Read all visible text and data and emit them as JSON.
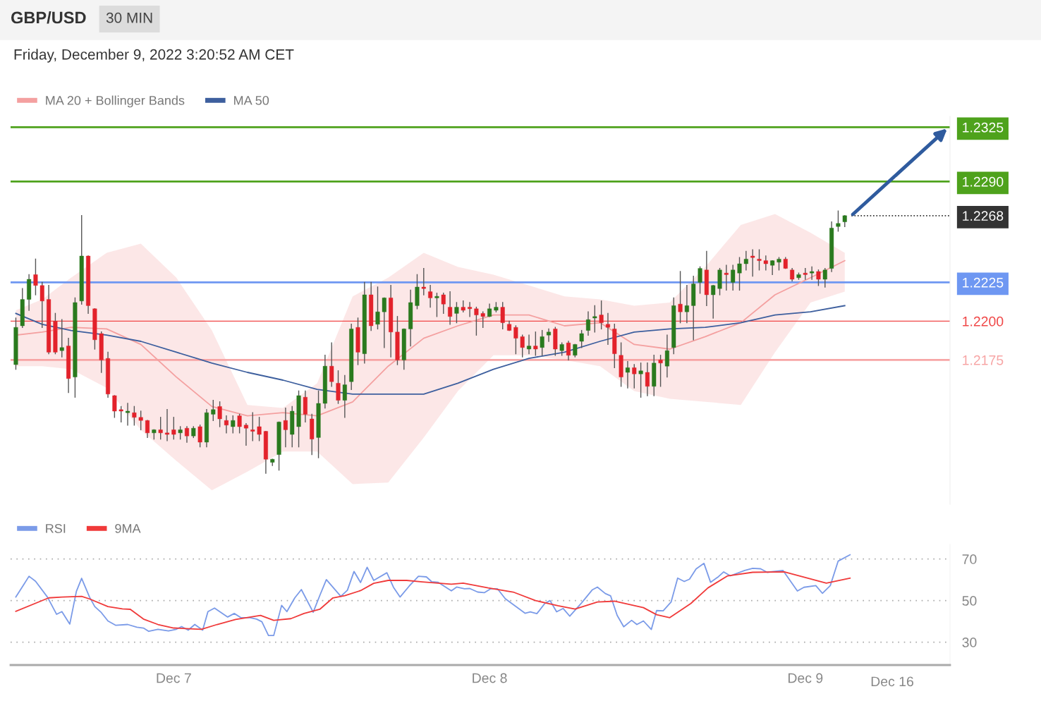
{
  "chart_data": [
    {
      "type": "candlestick",
      "title": "GBP/USD",
      "subtitle": "Friday, December 9, 2022 3:20:52 AM CET",
      "annotations": [
        "30 MIN"
      ],
      "x": [
        "2022-12-06T12:00",
        "2022-12-06T12:30",
        "2022-12-06T13:00",
        "2022-12-06T13:30",
        "2022-12-06T14:00",
        "2022-12-06T14:30",
        "2022-12-06T15:00",
        "2022-12-06T15:30",
        "2022-12-06T16:00",
        "2022-12-06T16:30",
        "2022-12-06T17:00",
        "2022-12-06T17:30",
        "2022-12-06T18:00",
        "2022-12-06T18:30",
        "2022-12-06T19:00",
        "2022-12-06T19:30",
        "2022-12-06T20:00",
        "2022-12-06T20:30",
        "2022-12-06T21:00",
        "2022-12-06T21:30",
        "2022-12-06T22:00",
        "2022-12-06T22:30",
        "2022-12-06T23:00",
        "2022-12-06T23:30",
        "2022-12-07T00:00",
        "2022-12-07T00:30",
        "2022-12-07T01:00",
        "2022-12-07T01:30",
        "2022-12-07T02:00",
        "2022-12-07T02:30",
        "2022-12-07T03:00",
        "2022-12-07T03:30",
        "2022-12-07T04:00",
        "2022-12-07T04:30",
        "2022-12-07T05:00",
        "2022-12-07T05:30",
        "2022-12-07T06:00",
        "2022-12-07T06:30",
        "2022-12-07T07:00",
        "2022-12-07T07:30",
        "2022-12-07T08:00",
        "2022-12-07T08:30",
        "2022-12-07T09:00",
        "2022-12-07T09:30",
        "2022-12-07T10:00",
        "2022-12-07T10:30",
        "2022-12-07T11:00",
        "2022-12-07T11:30",
        "2022-12-07T12:00",
        "2022-12-07T12:30",
        "2022-12-07T13:00",
        "2022-12-07T13:30",
        "2022-12-07T14:00",
        "2022-12-07T14:30",
        "2022-12-07T15:00",
        "2022-12-07T15:30",
        "2022-12-07T16:00",
        "2022-12-07T16:30",
        "2022-12-07T17:00",
        "2022-12-07T17:30",
        "2022-12-07T18:00",
        "2022-12-07T18:30",
        "2022-12-07T19:00",
        "2022-12-07T19:30",
        "2022-12-07T20:00",
        "2022-12-07T20:30",
        "2022-12-07T21:00",
        "2022-12-07T21:30",
        "2022-12-07T22:00",
        "2022-12-07T22:30",
        "2022-12-07T23:00",
        "2022-12-07T23:30",
        "2022-12-08T00:00",
        "2022-12-08T00:30",
        "2022-12-08T01:00",
        "2022-12-08T01:30",
        "2022-12-08T02:00",
        "2022-12-08T02:30",
        "2022-12-08T03:00",
        "2022-12-08T03:30",
        "2022-12-08T04:00",
        "2022-12-08T04:30",
        "2022-12-08T05:00",
        "2022-12-08T05:30",
        "2022-12-08T06:00",
        "2022-12-08T06:30",
        "2022-12-08T07:00",
        "2022-12-08T07:30",
        "2022-12-08T08:00",
        "2022-12-08T08:30",
        "2022-12-08T09:00",
        "2022-12-08T09:30",
        "2022-12-08T10:00",
        "2022-12-08T10:30",
        "2022-12-08T11:00",
        "2022-12-08T11:30",
        "2022-12-08T12:00",
        "2022-12-08T12:30",
        "2022-12-08T13:00",
        "2022-12-08T13:30",
        "2022-12-08T14:00",
        "2022-12-08T14:30",
        "2022-12-08T15:00",
        "2022-12-08T15:30",
        "2022-12-08T16:00",
        "2022-12-08T16:30",
        "2022-12-08T17:00",
        "2022-12-08T17:30",
        "2022-12-08T18:00",
        "2022-12-08T18:30",
        "2022-12-08T19:00",
        "2022-12-08T19:30",
        "2022-12-08T20:00",
        "2022-12-08T20:30",
        "2022-12-08T21:00",
        "2022-12-08T21:30",
        "2022-12-08T22:00",
        "2022-12-08T22:30",
        "2022-12-08T23:00",
        "2022-12-08T23:30",
        "2022-12-09T00:00",
        "2022-12-09T00:30",
        "2022-12-09T01:00",
        "2022-12-09T01:30",
        "2022-12-09T02:00",
        "2022-12-09T02:30",
        "2022-12-09T03:00"
      ],
      "ohlc": [
        [
          1.2172,
          1.2202,
          1.2169,
          1.2196
        ],
        [
          1.2197,
          1.2221,
          1.2196,
          1.2214
        ],
        [
          1.2214,
          1.223,
          1.2207,
          1.2227
        ],
        [
          1.223,
          1.224,
          1.2217,
          1.2223
        ],
        [
          1.2223,
          1.2225,
          1.2196,
          1.2213
        ],
        [
          1.2214,
          1.2223,
          1.2179,
          1.218
        ],
        [
          1.22,
          1.2205,
          1.2179,
          1.218
        ],
        [
          1.2181,
          1.2201,
          1.2177,
          1.2183
        ],
        [
          1.2184,
          1.2189,
          1.2154,
          1.2163
        ],
        [
          1.2164,
          1.2215,
          1.2151,
          1.2212
        ],
        [
          1.2213,
          1.2268,
          1.2211,
          1.2242
        ],
        [
          1.2242,
          1.2242,
          1.2205,
          1.221
        ],
        [
          1.2208,
          1.2208,
          1.2182,
          1.2188
        ],
        [
          1.2192,
          1.2193,
          1.2167,
          1.2175
        ],
        [
          1.2176,
          1.218,
          1.2151,
          1.2153
        ],
        [
          1.2152,
          1.2152,
          1.2138,
          1.2142
        ],
        [
          1.2143,
          1.2145,
          1.2135,
          1.2142
        ],
        [
          1.2141,
          1.2147,
          1.2133,
          1.2142
        ],
        [
          1.2141,
          1.2145,
          1.2133,
          1.2138
        ],
        [
          1.2138,
          1.2142,
          1.213,
          1.2136
        ],
        [
          1.2136,
          1.2136,
          1.2125,
          1.2128
        ],
        [
          1.2128,
          1.213,
          1.2124,
          1.213
        ],
        [
          1.213,
          1.2138,
          1.2124,
          1.2128
        ],
        [
          1.2128,
          1.2143,
          1.2123,
          1.2127
        ],
        [
          1.213,
          1.2138,
          1.2124,
          1.2127
        ],
        [
          1.2128,
          1.2132,
          1.2124,
          1.213
        ],
        [
          1.2131,
          1.2132,
          1.2122,
          1.2126
        ],
        [
          1.2126,
          1.2132,
          1.2125,
          1.2131
        ],
        [
          1.2132,
          1.2133,
          1.2119,
          1.2122
        ],
        [
          1.2122,
          1.2143,
          1.2119,
          1.2141
        ],
        [
          1.214,
          1.2149,
          1.2136,
          1.2143
        ],
        [
          1.2145,
          1.2148,
          1.2132,
          1.2137
        ],
        [
          1.2136,
          1.2139,
          1.2128,
          1.2133
        ],
        [
          1.2132,
          1.2139,
          1.2128,
          1.2136
        ],
        [
          1.2139,
          1.214,
          1.2128,
          1.2132
        ],
        [
          1.2133,
          1.2134,
          1.212,
          1.2131
        ],
        [
          1.213,
          1.2141,
          1.2123,
          1.2129
        ],
        [
          1.2132,
          1.2138,
          1.2123,
          1.2127
        ],
        [
          1.2129,
          1.2129,
          1.2102,
          1.2111
        ],
        [
          1.2109,
          1.2111,
          1.2107,
          1.2111
        ],
        [
          1.2114,
          1.2135,
          1.2104,
          1.2135
        ],
        [
          1.2136,
          1.2144,
          1.2119,
          1.213
        ],
        [
          1.2127,
          1.2145,
          1.2119,
          1.2142
        ],
        [
          1.2132,
          1.2155,
          1.2119,
          1.2152
        ],
        [
          1.2151,
          1.2155,
          1.2135,
          1.214
        ],
        [
          1.2137,
          1.214,
          1.2114,
          1.2124
        ],
        [
          1.2125,
          1.2155,
          1.2112,
          1.2147
        ],
        [
          1.2147,
          1.2178,
          1.2144,
          1.2171
        ],
        [
          1.2171,
          1.2186,
          1.2158,
          1.2161
        ],
        [
          1.216,
          1.2168,
          1.2147,
          1.2149
        ],
        [
          1.2149,
          1.2165,
          1.2138,
          1.2159
        ],
        [
          1.2161,
          1.2198,
          1.2156,
          1.2195
        ],
        [
          1.2196,
          1.2202,
          1.2172,
          1.218
        ],
        [
          1.2179,
          1.2225,
          1.2173,
          1.2217
        ],
        [
          1.2217,
          1.2225,
          1.2194,
          1.2197
        ],
        [
          1.2198,
          1.2222,
          1.2195,
          1.2206
        ],
        [
          1.2206,
          1.2215,
          1.2183,
          1.2215
        ],
        [
          1.2215,
          1.2223,
          1.2177,
          1.2193
        ],
        [
          1.2193,
          1.2203,
          1.2172,
          1.2175
        ],
        [
          1.2175,
          1.2195,
          1.2169,
          1.2195
        ],
        [
          1.2195,
          1.222,
          1.2184,
          1.2212
        ],
        [
          1.221,
          1.223,
          1.2208,
          1.2222
        ],
        [
          1.2222,
          1.2234,
          1.2217,
          1.2221
        ],
        [
          1.2219,
          1.2223,
          1.2209,
          1.2215
        ],
        [
          1.2215,
          1.2218,
          1.2203,
          1.2216
        ],
        [
          1.2217,
          1.2218,
          1.2205,
          1.2211
        ],
        [
          1.2209,
          1.2219,
          1.2198,
          1.2203
        ],
        [
          1.2205,
          1.2212,
          1.2199,
          1.2209
        ],
        [
          1.2209,
          1.2213,
          1.2206,
          1.2207
        ],
        [
          1.2209,
          1.2212,
          1.2203,
          1.2208
        ],
        [
          1.2208,
          1.2209,
          1.2191,
          1.2204
        ],
        [
          1.2205,
          1.2206,
          1.2196,
          1.2203
        ],
        [
          1.2203,
          1.2211,
          1.2203,
          1.2208
        ],
        [
          1.2207,
          1.2212,
          1.2206,
          1.2209
        ],
        [
          1.2209,
          1.2212,
          1.2195,
          1.2199
        ],
        [
          1.2198,
          1.22,
          1.2194,
          1.2194
        ],
        [
          1.2196,
          1.2197,
          1.2179,
          1.2189
        ],
        [
          1.219,
          1.2191,
          1.2177,
          1.2183
        ],
        [
          1.2182,
          1.2191,
          1.2179,
          1.2184
        ],
        [
          1.2184,
          1.2193,
          1.2178,
          1.2182
        ],
        [
          1.2183,
          1.2194,
          1.2178,
          1.219
        ],
        [
          1.2191,
          1.2195,
          1.2187,
          1.2193
        ],
        [
          1.2195,
          1.2196,
          1.2178,
          1.2182
        ],
        [
          1.2181,
          1.2186,
          1.2178,
          1.2185
        ],
        [
          1.2186,
          1.2187,
          1.2175,
          1.2178
        ],
        [
          1.2178,
          1.2185,
          1.2177,
          1.2185
        ],
        [
          1.2187,
          1.2194,
          1.2183,
          1.2192
        ],
        [
          1.2194,
          1.2206,
          1.2191,
          1.2201
        ],
        [
          1.2202,
          1.221,
          1.2193,
          1.2203
        ],
        [
          1.2204,
          1.2213,
          1.2195,
          1.2199
        ],
        [
          1.2198,
          1.2205,
          1.2185,
          1.2196
        ],
        [
          1.2195,
          1.2198,
          1.217,
          1.2179
        ],
        [
          1.2178,
          1.2186,
          1.2158,
          1.2164
        ],
        [
          1.2167,
          1.2174,
          1.2157,
          1.217
        ],
        [
          1.217,
          1.2172,
          1.2157,
          1.2166
        ],
        [
          1.2166,
          1.2173,
          1.2151,
          1.2168
        ],
        [
          1.2167,
          1.2173,
          1.2152,
          1.2158
        ],
        [
          1.2158,
          1.2178,
          1.2152,
          1.2173
        ],
        [
          1.2175,
          1.2178,
          1.2158,
          1.2173
        ],
        [
          1.2171,
          1.2191,
          1.2164,
          1.2181
        ],
        [
          1.2183,
          1.2215,
          1.2179,
          1.221
        ],
        [
          1.2211,
          1.2232,
          1.2199,
          1.2206
        ],
        [
          1.2206,
          1.2223,
          1.2199,
          1.221
        ],
        [
          1.221,
          1.2229,
          1.2188,
          1.2224
        ],
        [
          1.2225,
          1.2235,
          1.2218,
          1.2234
        ],
        [
          1.2233,
          1.2245,
          1.221,
          1.2217
        ],
        [
          1.2217,
          1.2223,
          1.2202,
          1.2223
        ],
        [
          1.2221,
          1.2234,
          1.2217,
          1.2233
        ],
        [
          1.2231,
          1.2236,
          1.222,
          1.223
        ],
        [
          1.2225,
          1.2236,
          1.222,
          1.2233
        ],
        [
          1.2231,
          1.2241,
          1.222,
          1.2237
        ],
        [
          1.2237,
          1.2245,
          1.2233,
          1.224
        ],
        [
          1.2242,
          1.2246,
          1.2229,
          1.2241
        ],
        [
          1.224,
          1.2246,
          1.2233,
          1.2239
        ],
        [
          1.2239,
          1.2242,
          1.2233,
          1.2237
        ],
        [
          1.2236,
          1.2239,
          1.223,
          1.2239
        ],
        [
          1.2238,
          1.2241,
          1.2233,
          1.224
        ],
        [
          1.224,
          1.2241,
          1.2234,
          1.2234
        ],
        [
          1.2233,
          1.2234,
          1.2226,
          1.2227
        ],
        [
          1.2228,
          1.2231,
          1.2227,
          1.223
        ],
        [
          1.2231,
          1.2234,
          1.2227,
          1.223
        ],
        [
          1.2231,
          1.2235,
          1.2227,
          1.2232
        ],
        [
          1.2232,
          1.2233,
          1.2223,
          1.2227
        ],
        [
          1.2227,
          1.2234,
          1.2222,
          1.2233
        ],
        [
          1.2234,
          1.2264,
          1.2232,
          1.226
        ],
        [
          1.2261,
          1.2271,
          1.2258,
          1.2263
        ],
        [
          1.2264,
          1.2268,
          1.2261,
          1.2268
        ]
      ],
      "series": [
        {
          "name": "MA 20 + Bollinger Bands",
          "type": "line",
          "color": "#f4a0a0",
          "x": [
            "2022-12-06T12:00",
            "2022-12-06T14:00",
            "2022-12-06T16:12",
            "2022-12-06T18:54",
            "2022-12-06T21:30",
            "2022-12-07T00:12",
            "2022-12-07T02:54",
            "2022-12-07T05:36",
            "2022-12-07T08:18",
            "2022-12-07T10:54",
            "2022-12-07T13:36",
            "2022-12-07T16:18",
            "2022-12-07T19:00",
            "2022-12-07T21:36",
            "2022-12-08T00:18",
            "2022-12-08T03:00",
            "2022-12-08T05:42",
            "2022-12-08T08:24",
            "2022-12-08T11:00",
            "2022-12-08T13:42",
            "2022-12-08T16:24",
            "2022-12-08T19:06",
            "2022-12-08T21:42",
            "2022-12-09T00:24",
            "2022-12-09T03:00"
          ],
          "values": [
            1.2191,
            1.2193,
            1.2196,
            1.2195,
            1.2185,
            1.2164,
            1.2145,
            1.2139,
            1.2141,
            1.2139,
            1.2148,
            1.2171,
            1.2189,
            1.2197,
            1.2204,
            1.2204,
            1.2197,
            1.2199,
            1.2185,
            1.2182,
            1.219,
            1.2199,
            1.2217,
            1.2228,
            1.2239
          ],
          "lower": [
            1.2171,
            1.2171,
            1.2169,
            1.2157,
            1.213,
            1.211,
            1.2091,
            1.2103,
            1.2116,
            1.2116,
            1.2095,
            1.2096,
            1.2125,
            1.2155,
            1.2178,
            1.2178,
            1.2175,
            1.2171,
            1.2155,
            1.215,
            1.2148,
            1.2146,
            1.218,
            1.2212,
            1.2219
          ],
          "upper": [
            1.2207,
            1.2214,
            1.2228,
            1.2244,
            1.225,
            1.2228,
            1.2194,
            1.2146,
            1.2144,
            1.216,
            1.2216,
            1.2228,
            1.2244,
            1.2235,
            1.223,
            1.2223,
            1.2216,
            1.2214,
            1.221,
            1.2212,
            1.2235,
            1.2262,
            1.2269,
            1.2257,
            1.2244
          ]
        },
        {
          "name": "MA 50",
          "type": "line",
          "color": "#3d5f9e",
          "x": [
            "2022-12-06T12:00",
            "2022-12-06T14:00",
            "2022-12-06T16:12",
            "2022-12-06T18:54",
            "2022-12-06T21:30",
            "2022-12-07T00:12",
            "2022-12-07T02:54",
            "2022-12-07T05:36",
            "2022-12-07T08:18",
            "2022-12-07T10:54",
            "2022-12-07T13:36",
            "2022-12-07T16:18",
            "2022-12-07T19:00",
            "2022-12-07T21:36",
            "2022-12-08T00:18",
            "2022-12-08T03:00",
            "2022-12-08T05:42",
            "2022-12-08T08:24",
            "2022-12-08T11:00",
            "2022-12-08T13:42",
            "2022-12-08T16:24",
            "2022-12-08T19:06",
            "2022-12-08T21:42",
            "2022-12-09T00:24",
            "2022-12-09T03:00"
          ],
          "values": [
            1.2205,
            1.2198,
            1.2194,
            1.2191,
            1.2187,
            1.218,
            1.2173,
            1.2167,
            1.2162,
            1.2156,
            1.2153,
            1.2153,
            1.2153,
            1.216,
            1.2169,
            1.2176,
            1.218,
            1.2187,
            1.2193,
            1.2195,
            1.2196,
            1.2199,
            1.2204,
            1.2206,
            1.221
          ]
        }
      ],
      "xlim": [
        "2022-12-06T11:36",
        "2022-12-09T11:00"
      ],
      "ylim": [
        1.2082,
        1.2332
      ],
      "yticks": [
        1.2175,
        {
          "value": 1.22,
          "label": "1.2200"
        },
        1.2225,
        1.2268,
        {
          "value": 1.229,
          "label": "1.2290"
        },
        1.2325
      ],
      "tick_labels": "y",
      "legend": "top left",
      "ref_lines": [
        {
          "axis": "y",
          "value": 1.2325,
          "color": "#4ea21c",
          "line_style": "solid"
        },
        {
          "axis": "y",
          "value": 1.229,
          "color": "#4ea21c",
          "line_style": "solid"
        },
        {
          "axis": "y",
          "value": 1.2268,
          "color": "#333333",
          "line_style": "dotted"
        },
        {
          "axis": "y",
          "value": 1.2225,
          "color": "#6e97f2",
          "line_style": "solid"
        },
        {
          "axis": "y",
          "value": 1.22,
          "color": "#f04848",
          "line_style": "solid"
        },
        {
          "axis": "y",
          "value": 1.2175,
          "color": "#f7a5a5",
          "line_style": "solid"
        }
      ]
    },
    {
      "type": "line",
      "legend": "top left",
      "grid": "y",
      "series": [
        {
          "name": "RSI",
          "color": "#7b9be8",
          "x": [
            "2022-12-06T12:00",
            "2022-12-06T12:36",
            "2022-12-06T13:00",
            "2022-12-06T13:30",
            "2022-12-06T14:24",
            "2022-12-06T15:06",
            "2022-12-06T15:30",
            "2022-12-06T16:06",
            "2022-12-06T16:36",
            "2022-12-06T17:00",
            "2022-12-06T17:36",
            "2022-12-06T18:00",
            "2022-12-06T18:30",
            "2022-12-06T19:00",
            "2022-12-06T19:36",
            "2022-12-06T20:30",
            "2022-12-06T21:12",
            "2022-12-06T21:42",
            "2022-12-06T22:06",
            "2022-12-06T22:48",
            "2022-12-06T23:36",
            "2022-12-07T00:12",
            "2022-12-07T00:36",
            "2022-12-07T01:06",
            "2022-12-07T01:36",
            "2022-12-07T02:12",
            "2022-12-07T02:36",
            "2022-12-07T03:06",
            "2022-12-07T04:06",
            "2022-12-07T04:36",
            "2022-12-07T05:06",
            "2022-12-07T05:48",
            "2022-12-07T06:18",
            "2022-12-07T06:42",
            "2022-12-07T07:12",
            "2022-12-07T07:36",
            "2022-12-07T08:12",
            "2022-12-07T08:36",
            "2022-12-07T09:12",
            "2022-12-07T09:42",
            "2022-12-07T10:36",
            "2022-12-07T11:06",
            "2022-12-07T11:36",
            "2022-12-07T12:42",
            "2022-12-07T13:12",
            "2022-12-07T13:42",
            "2022-12-07T14:12",
            "2022-12-07T14:42",
            "2022-12-07T15:12",
            "2022-12-07T16:12",
            "2022-12-07T16:42",
            "2022-12-07T17:12",
            "2022-12-07T17:54",
            "2022-12-07T18:36",
            "2022-12-07T19:12",
            "2022-12-07T19:36",
            "2022-12-07T20:06",
            "2022-12-07T21:06",
            "2022-12-07T21:30",
            "2022-12-07T22:06",
            "2022-12-07T22:30",
            "2022-12-07T23:06",
            "2022-12-07T23:36",
            "2022-12-08T00:06",
            "2022-12-08T00:36",
            "2022-12-08T01:12",
            "2022-12-08T02:42",
            "2022-12-08T03:06",
            "2022-12-08T03:36",
            "2022-12-08T04:12",
            "2022-12-08T04:36",
            "2022-12-08T05:06",
            "2022-12-08T05:36",
            "2022-12-08T06:06",
            "2022-12-08T07:00",
            "2022-12-08T07:48",
            "2022-12-08T08:12",
            "2022-12-08T08:48",
            "2022-12-08T09:12",
            "2022-12-08T09:42",
            "2022-12-08T10:12",
            "2022-12-08T10:48",
            "2022-12-08T11:12",
            "2022-12-08T11:42",
            "2022-12-08T12:18",
            "2022-12-08T12:42",
            "2022-12-08T13:12",
            "2022-12-08T13:48",
            "2022-12-08T14:18",
            "2022-12-08T14:48",
            "2022-12-08T15:12",
            "2022-12-08T15:42",
            "2022-12-08T16:18",
            "2022-12-08T16:48",
            "2022-12-08T17:24",
            "2022-12-08T17:48",
            "2022-12-08T18:18",
            "2022-12-08T19:24",
            "2022-12-08T20:00",
            "2022-12-08T20:36",
            "2022-12-08T21:06",
            "2022-12-08T22:18",
            "2022-12-08T23:24",
            "2022-12-08T23:54",
            "2022-12-09T00:48",
            "2022-12-09T01:18",
            "2022-12-09T01:54",
            "2022-12-09T02:30",
            "2022-12-09T03:24"
          ],
          "values": [
            51.7,
            57.7,
            61.7,
            59.3,
            51.7,
            43.4,
            44.7,
            38.7,
            54.4,
            60.7,
            51.7,
            47.1,
            44.2,
            40.2,
            38.1,
            38.5,
            37.2,
            36.8,
            35.2,
            36.2,
            35.4,
            36.2,
            37.5,
            35.8,
            38.5,
            35.8,
            44.7,
            46.4,
            42.1,
            43.8,
            41.8,
            41.8,
            41.1,
            39.8,
            33.2,
            33.2,
            47.7,
            44.7,
            51.3,
            55.3,
            44.4,
            52.4,
            60.1,
            52.0,
            55.0,
            64.0,
            58.7,
            66.0,
            59.7,
            63.4,
            56.4,
            51.7,
            57.0,
            61.7,
            61.4,
            59.1,
            58.8,
            54.7,
            56.5,
            55.7,
            55.8,
            54.1,
            53.8,
            55.7,
            55.7,
            50.9,
            43.9,
            44.6,
            43.7,
            48.6,
            50.0,
            44.6,
            46.2,
            42.5,
            48.9,
            55.1,
            56.5,
            53.4,
            52.3,
            42.9,
            37.4,
            40.5,
            38.5,
            40.2,
            36.1,
            45.2,
            45.1,
            49.3,
            60.8,
            59.2,
            60.3,
            65.2,
            67.9,
            58.8,
            61.5,
            63.8,
            61.9,
            64.5,
            65.5,
            65.3,
            63.6,
            64.5,
            54.6,
            56.4,
            57.2,
            53.5,
            57.2,
            69.0,
            72.0
          ]
        },
        {
          "name": "9MA",
          "color": "#f03a3a",
          "x": [
            "2022-12-06T12:00",
            "2022-12-06T14:30",
            "2022-12-06T15:30",
            "2022-12-06T17:00",
            "2022-12-06T17:36",
            "2022-12-06T19:00",
            "2022-12-06T20:06",
            "2022-12-06T20:42",
            "2022-12-06T21:42",
            "2022-12-06T22:48",
            "2022-12-07T00:00",
            "2022-12-07T02:06",
            "2022-12-07T03:18",
            "2022-12-07T04:42",
            "2022-12-07T06:36",
            "2022-12-07T07:36",
            "2022-12-07T08:54",
            "2022-12-07T09:54",
            "2022-12-07T11:06",
            "2022-12-07T12:06",
            "2022-12-07T13:00",
            "2022-12-07T14:12",
            "2022-12-07T15:12",
            "2022-12-07T16:18",
            "2022-12-07T17:42",
            "2022-12-07T18:54",
            "2022-12-07T21:06",
            "2022-12-07T22:00",
            "2022-12-07T23:54",
            "2022-12-08T01:48",
            "2022-12-08T03:30",
            "2022-12-08T05:12",
            "2022-12-08T06:30",
            "2022-12-08T08:12",
            "2022-12-08T09:30",
            "2022-12-08T11:42",
            "2022-12-08T12:42",
            "2022-12-08T13:42",
            "2022-12-08T15:18",
            "2022-12-08T16:36",
            "2022-12-08T18:06",
            "2022-12-08T20:00",
            "2022-12-08T22:24",
            "2022-12-09T01:36",
            "2022-12-09T03:24"
          ],
          "values": [
            44.8,
            51.3,
            51.7,
            52.0,
            50.8,
            47.1,
            46.0,
            45.8,
            41.1,
            38.5,
            36.8,
            36.2,
            38.5,
            40.9,
            42.9,
            40.5,
            41.3,
            43.8,
            45.8,
            51.3,
            52.4,
            54.8,
            58.3,
            59.7,
            59.7,
            59.0,
            57.9,
            58.4,
            56.1,
            54.1,
            50.0,
            47.5,
            45.9,
            49.3,
            49.7,
            46.6,
            43.2,
            41.8,
            48.6,
            56.1,
            61.9,
            63.6,
            63.8,
            58.4,
            60.8
          ]
        }
      ],
      "xlim": [
        "2022-12-06T11:36",
        "2022-12-09T11:00"
      ],
      "xticks": [
        {
          "value": "2022-12-07",
          "label": "Dec 7"
        },
        {
          "value": "2022-12-08",
          "label": "Dec 8"
        },
        {
          "value": "2022-12-09",
          "label": "Dec 9"
        }
      ],
      "annotations": [
        "Dec 16"
      ],
      "ylim": [
        19,
        77
      ],
      "yticks": [
        30,
        50,
        70
      ]
    }
  ]
}
